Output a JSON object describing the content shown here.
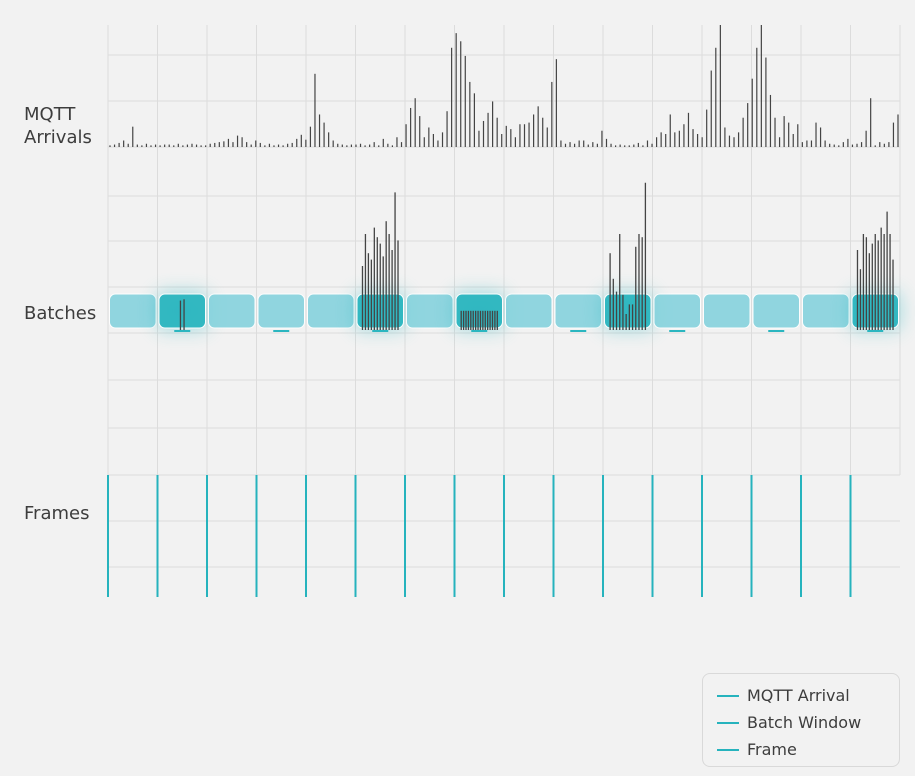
{
  "labels": {
    "arrivals": "MQTT\nArrivals",
    "batches": "Batches",
    "frames": "Frames"
  },
  "legend": [
    {
      "label": "MQTT Arrival",
      "color": "#26b3bd"
    },
    {
      "label": "Batch Window",
      "color": "#26b3bd"
    },
    {
      "label": "Frame",
      "color": "#26b3bd"
    }
  ],
  "colors": {
    "arrival_tick": "#444444",
    "batch_fill": "#7fd1dc",
    "batch_active": "#2bb6c0",
    "frame_line": "#26b3bd",
    "grid": "#dcdcdc"
  },
  "timeline": {
    "windows": 16,
    "active_batches": [
      1,
      5,
      7,
      10,
      15
    ],
    "arrival_heights": [
      2,
      3,
      5,
      8,
      4,
      25,
      3,
      2,
      4,
      2,
      3,
      2,
      3,
      3,
      2,
      4,
      2,
      3,
      4,
      3,
      2,
      2,
      4,
      5,
      6,
      7,
      10,
      6,
      14,
      12,
      6,
      3,
      8,
      5,
      2,
      4,
      2,
      3,
      2,
      4,
      5,
      10,
      15,
      9,
      25,
      90,
      40,
      30,
      18,
      8,
      4,
      3,
      2,
      3,
      3,
      4,
      2,
      3,
      6,
      2,
      10,
      4,
      2,
      12,
      6,
      28,
      48,
      60,
      38,
      12,
      24,
      16,
      8,
      18,
      44,
      122,
      140,
      130,
      112,
      80,
      66,
      20,
      32,
      42,
      56,
      36,
      16,
      26,
      22,
      12,
      28,
      28,
      30,
      40,
      50,
      36,
      24,
      80,
      108,
      8,
      4,
      6,
      4,
      8,
      8,
      3,
      6,
      4,
      20,
      10,
      4,
      2,
      3,
      2,
      2,
      3,
      5,
      2,
      8,
      4,
      12,
      18,
      16,
      40,
      18,
      20,
      28,
      42,
      22,
      16,
      12,
      46,
      94,
      122,
      150,
      24,
      14,
      12,
      18,
      36,
      54,
      84,
      122,
      150,
      110,
      64,
      36,
      12,
      38,
      30,
      16,
      28,
      6,
      8,
      8,
      30,
      24,
      8,
      4,
      3,
      2,
      6,
      10,
      3,
      4,
      6,
      20,
      60,
      2,
      6,
      4,
      6,
      30,
      40
    ],
    "batch_arrivals": {
      "1": [
        46,
        48
      ],
      "5": [
        100,
        150,
        120,
        110,
        160,
        145,
        135,
        115,
        170,
        150,
        125,
        215,
        140
      ],
      "7": [
        30,
        30,
        30,
        30,
        30,
        30,
        30,
        30,
        30,
        30,
        30,
        30,
        30,
        30,
        30,
        30
      ],
      "10": [
        120,
        80,
        60,
        150,
        55,
        25,
        40,
        40,
        130,
        150,
        145,
        230
      ],
      "15": [
        125,
        95,
        150,
        145,
        120,
        135,
        150,
        140,
        160,
        150,
        185,
        150,
        110
      ]
    }
  }
}
